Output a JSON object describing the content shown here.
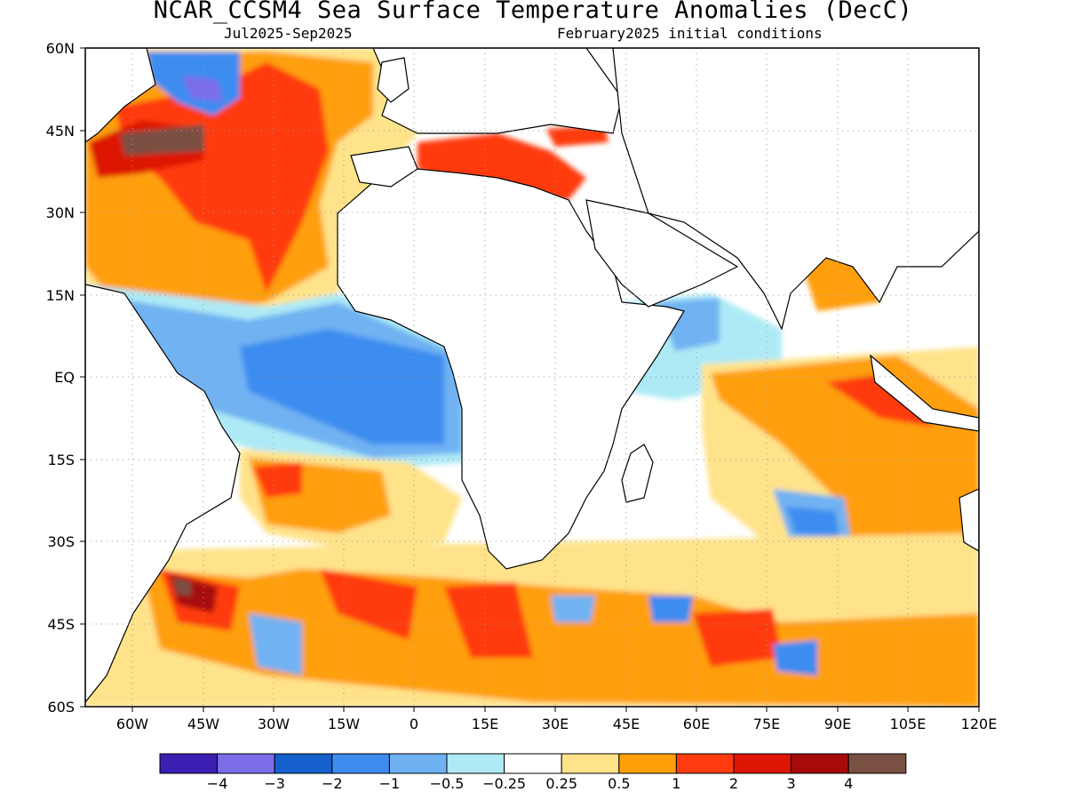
{
  "title": "NCAR_CCSM4 Sea Surface Temperature Anomalies (DecC)",
  "subtitle_left": "Jul2025-Sep2025",
  "subtitle_right": "February2025 initial conditions",
  "lat_labels": [
    "60N",
    "45N",
    "30N",
    "15N",
    "EQ",
    "15S",
    "30S",
    "45S",
    "60S"
  ],
  "lon_labels": [
    "60W",
    "45W",
    "30W",
    "15W",
    "0",
    "15E",
    "30E",
    "45E",
    "60E",
    "75E",
    "90E",
    "105E",
    "120E"
  ],
  "map": {
    "lon_range": [
      -70,
      120
    ],
    "lat_range": [
      -60,
      60
    ],
    "land_color": "#ffffff",
    "grid": "dotted"
  },
  "colorbar": {
    "colors": [
      "#3b1fb3",
      "#7b6de8",
      "#1560cc",
      "#3c8cf0",
      "#6fb2f2",
      "#aeeaf5",
      "#ffffff",
      "#ffe38a",
      "#ff9f0a",
      "#ff3b10",
      "#dd1505",
      "#a70a0a",
      "#7a5043"
    ],
    "labels": [
      "-4",
      "-3",
      "-2",
      "-1",
      "-0.5",
      "-0.25",
      "0.25",
      "0.5",
      "1",
      "2",
      "3",
      "4"
    ]
  }
}
